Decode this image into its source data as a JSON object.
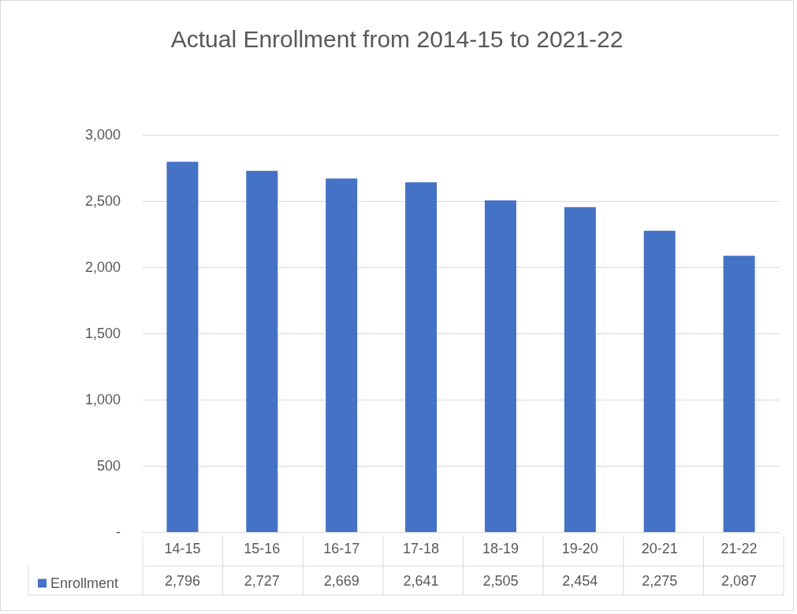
{
  "chart_data": {
    "type": "bar",
    "title": "Actual Enrollment from 2014-15 to 2021-22",
    "categories": [
      "14-15",
      "15-16",
      "16-17",
      "17-18",
      "18-19",
      "19-20",
      "20-21",
      "21-22"
    ],
    "series": [
      {
        "name": "Enrollment",
        "color": "#4472c4",
        "values": [
          2796,
          2727,
          2669,
          2641,
          2505,
          2454,
          2275,
          2087
        ],
        "value_labels": [
          "2,796",
          "2,727",
          "2,669",
          "2,641",
          "2,505",
          "2,454",
          "2,275",
          "2,087"
        ]
      }
    ],
    "ylim": [
      0,
      3000
    ],
    "yticks": [
      {
        "value": 0,
        "label": "-"
      },
      {
        "value": 500,
        "label": "500"
      },
      {
        "value": 1000,
        "label": "1,000"
      },
      {
        "value": 1500,
        "label": "1,500"
      },
      {
        "value": 2000,
        "label": "2,000"
      },
      {
        "value": 2500,
        "label": "2,500"
      },
      {
        "value": 3000,
        "label": "3,000"
      }
    ],
    "grid": "y",
    "legend": "bottom"
  }
}
